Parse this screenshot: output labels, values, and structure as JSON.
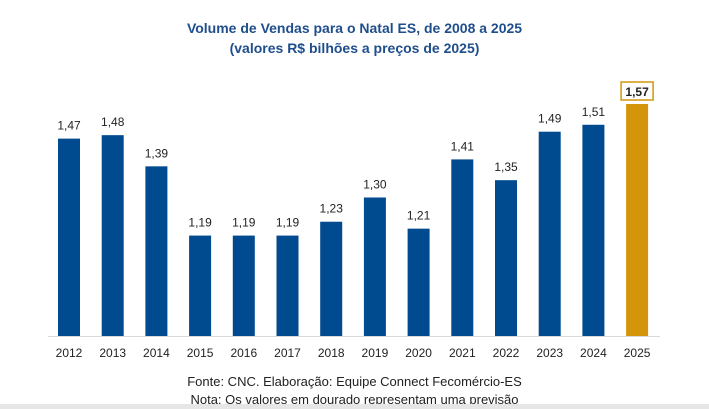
{
  "chart_data": {
    "type": "bar",
    "title": "Volume de Vendas para o Natal ES, de 2008 a 2025",
    "subtitle": "(valores R$ bilhões a preços de 2025)",
    "categories": [
      "2012",
      "2013",
      "2014",
      "2015",
      "2016",
      "2017",
      "2018",
      "2019",
      "2020",
      "2021",
      "2022",
      "2023",
      "2024",
      "2025"
    ],
    "values": [
      1.47,
      1.48,
      1.39,
      1.19,
      1.19,
      1.19,
      1.23,
      1.3,
      1.21,
      1.41,
      1.35,
      1.49,
      1.51,
      1.57
    ],
    "labels": [
      "1,47",
      "1,48",
      "1,39",
      "1,19",
      "1,19",
      "1,19",
      "1,23",
      "1,30",
      "1,21",
      "1,41",
      "1,35",
      "1,49",
      "1,51",
      "1,57"
    ],
    "forecast": [
      false,
      false,
      false,
      false,
      false,
      false,
      false,
      false,
      false,
      false,
      false,
      false,
      false,
      true
    ],
    "colors": {
      "actual": "#004a8f",
      "forecast": "#d4950a"
    },
    "ylim": [
      0.9,
      1.6
    ],
    "grid": false,
    "legend": "none"
  },
  "footer": {
    "source": "Fonte: CNC.  Elaboração: Equipe Connect Fecomércio-ES",
    "note": "Nota: Os valores em dourado representam uma previsão"
  }
}
